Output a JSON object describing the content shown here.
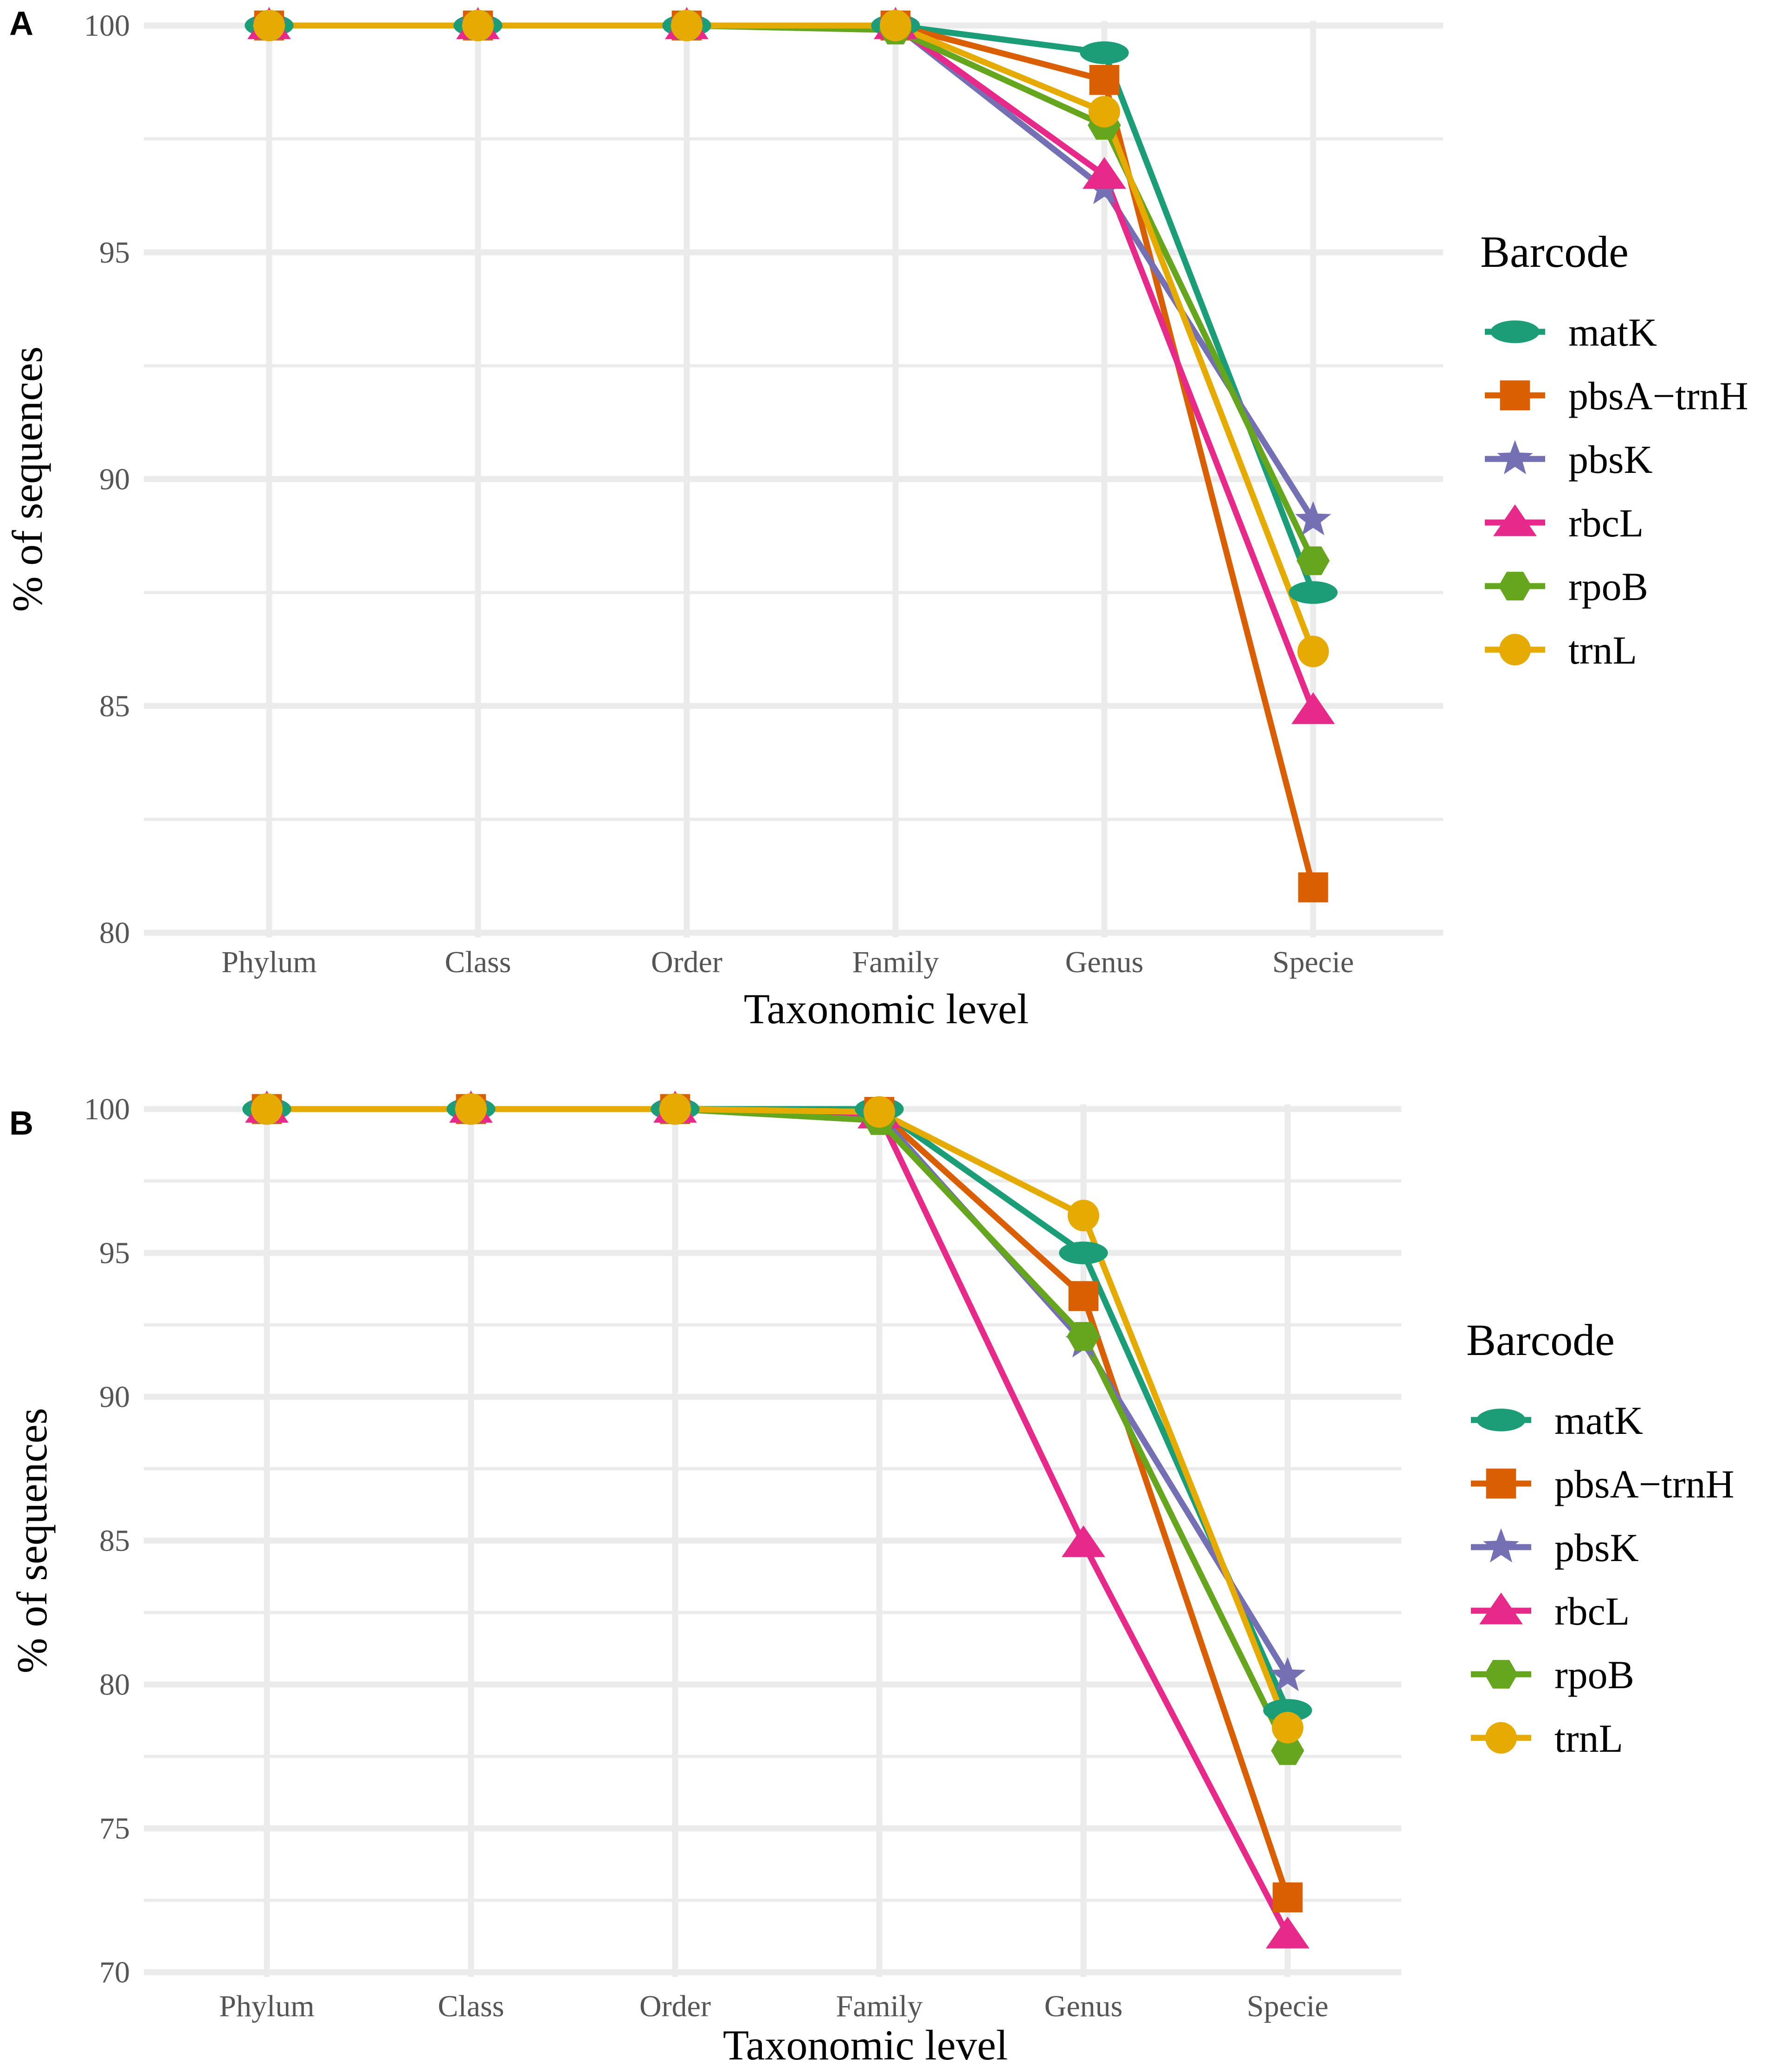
{
  "colors": {
    "matK": "#1b9e77",
    "pbsA-trnH": "#d95f02",
    "pbsK": "#7570b3",
    "rbcL": "#e7298a",
    "rpoB": "#66a61e",
    "trnL": "#e6ab02",
    "grid": "#ebebeb"
  },
  "icons": {
    "matK": "ellipse-marker",
    "pbsA-trnH": "square-marker",
    "pbsK": "star-marker",
    "rbcL": "triangle-marker",
    "rpoB": "hexagon-marker",
    "trnL": "circle-marker"
  },
  "chart_data": [
    {
      "panel": "A",
      "type": "line",
      "xlabel": "Taxonomic level",
      "ylabel": "% of sequences",
      "categories": [
        "Phylum",
        "Class",
        "Order",
        "Family",
        "Genus",
        "Specie"
      ],
      "ylim": [
        80,
        100
      ],
      "yticks": [
        80,
        85,
        90,
        95,
        100
      ],
      "grid": true,
      "legend": {
        "title": "Barcode",
        "placement": "right",
        "items": [
          "matK",
          "pbsA−trnH",
          "pbsK",
          "rbcL",
          "rpoB",
          "trnL"
        ]
      },
      "series": [
        {
          "name": "matK",
          "values": [
            100,
            100,
            100,
            100,
            99.4,
            87.5
          ]
        },
        {
          "name": "pbsA-trnH",
          "values": [
            100,
            100,
            100,
            100,
            98.8,
            81.0
          ]
        },
        {
          "name": "pbsK",
          "values": [
            100,
            100,
            100,
            100,
            96.4,
            89.1
          ]
        },
        {
          "name": "rbcL",
          "values": [
            100,
            100,
            100,
            100,
            96.7,
            84.9
          ]
        },
        {
          "name": "rpoB",
          "values": [
            100,
            100,
            100,
            99.9,
            97.8,
            88.2
          ]
        },
        {
          "name": "trnL",
          "values": [
            100,
            100,
            100,
            100,
            98.1,
            86.2
          ]
        }
      ]
    },
    {
      "panel": "B",
      "type": "line",
      "xlabel": "Taxonomic level",
      "ylabel": "% of sequences",
      "categories": [
        "Phylum",
        "Class",
        "Order",
        "Family",
        "Genus",
        "Specie"
      ],
      "ylim": [
        70,
        100
      ],
      "yticks": [
        70,
        75,
        80,
        85,
        90,
        95,
        100
      ],
      "grid": true,
      "legend": {
        "title": "Barcode",
        "placement": "right",
        "items": [
          "matK",
          "pbsA−trnH",
          "pbsK",
          "rbcL",
          "rpoB",
          "trnL"
        ]
      },
      "series": [
        {
          "name": "matK",
          "values": [
            100,
            100,
            100,
            100,
            95.0,
            79.1
          ]
        },
        {
          "name": "pbsA-trnH",
          "values": [
            100,
            100,
            100,
            99.9,
            93.5,
            72.6
          ]
        },
        {
          "name": "pbsK",
          "values": [
            100,
            100,
            100,
            99.8,
            91.9,
            80.3
          ]
        },
        {
          "name": "rbcL",
          "values": [
            100,
            100,
            100,
            99.8,
            84.9,
            71.3
          ]
        },
        {
          "name": "rpoB",
          "values": [
            100,
            100,
            100,
            99.6,
            92.1,
            77.7
          ]
        },
        {
          "name": "trnL",
          "values": [
            100,
            100,
            100,
            99.9,
            96.3,
            78.5
          ]
        }
      ]
    }
  ]
}
